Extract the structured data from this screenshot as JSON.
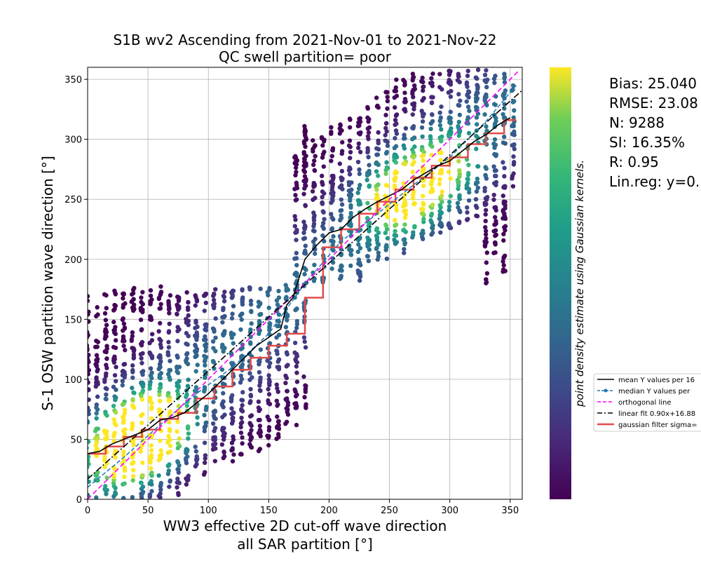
{
  "chart_data": {
    "type": "scatter",
    "title": [
      "S1B wv2 Ascending from 2021-Nov-01 to 2021-Nov-22",
      "QC swell partition= poor"
    ],
    "xlabel": [
      "WW3 effective 2D cut-off wave direction",
      "all SAR partition [°]"
    ],
    "ylabel": "S-1 OSW partition wave direction [°]",
    "xlim": [
      0,
      360
    ],
    "ylim": [
      0,
      360
    ],
    "xticks": [
      0,
      50,
      100,
      150,
      200,
      250,
      300,
      350
    ],
    "yticks": [
      0,
      50,
      100,
      150,
      200,
      250,
      300,
      350
    ],
    "grid": true,
    "colorbar_label": "point density estimate using Gaussian kernels.",
    "colormap": "viridis",
    "stats": [
      "Bias: 25.040",
      "RMSE: 23.08",
      "N: 9288",
      "SI: 16.35%",
      "R: 0.95",
      "Lin.reg: y=0."
    ],
    "legend_position": "right",
    "legend": [
      {
        "label": "mean Y values per 16",
        "color": "#000000",
        "style": "solid"
      },
      {
        "label": "median Y values per",
        "color": "#1f77b4",
        "style": "dashed-dot-marker"
      },
      {
        "label": "orthogonal line",
        "color": "#ff00ff",
        "style": "dashed"
      },
      {
        "label": "linear fit 0.90x+16.88",
        "color": "#000000",
        "style": "dashdot"
      },
      {
        "label": "gaussian filter sigma=",
        "color": "#e34a4a",
        "style": "solid-thick"
      }
    ],
    "scatter_columns": [
      {
        "x": 0,
        "ymin": 0,
        "ymax": 170
      },
      {
        "x": 7.5,
        "ymin": 0,
        "ymax": 165
      },
      {
        "x": 15,
        "ymin": 0,
        "ymax": 175
      },
      {
        "x": 22.5,
        "ymin": 0,
        "ymax": 175
      },
      {
        "x": 30,
        "ymin": 0,
        "ymax": 178
      },
      {
        "x": 37.5,
        "ymin": 0,
        "ymax": 178
      },
      {
        "x": 45,
        "ymin": 0,
        "ymax": 178
      },
      {
        "x": 52.5,
        "ymin": 0,
        "ymax": 178
      },
      {
        "x": 60,
        "ymin": 0,
        "ymax": 178
      },
      {
        "x": 67.5,
        "ymin": 10,
        "ymax": 175
      },
      {
        "x": 75,
        "ymin": 0,
        "ymax": 175
      },
      {
        "x": 82.5,
        "ymin": 10,
        "ymax": 175
      },
      {
        "x": 90,
        "ymin": 15,
        "ymax": 170
      },
      {
        "x": 97.5,
        "ymin": 20,
        "ymax": 172
      },
      {
        "x": 105,
        "ymin": 25,
        "ymax": 178
      },
      {
        "x": 112.5,
        "ymin": 30,
        "ymax": 178
      },
      {
        "x": 120,
        "ymin": 30,
        "ymax": 178
      },
      {
        "x": 127.5,
        "ymin": 35,
        "ymax": 178
      },
      {
        "x": 135,
        "ymin": 40,
        "ymax": 178
      },
      {
        "x": 142.5,
        "ymin": 40,
        "ymax": 178
      },
      {
        "x": 150,
        "ymin": 45,
        "ymax": 178
      },
      {
        "x": 157.5,
        "ymin": 50,
        "ymax": 180
      },
      {
        "x": 165,
        "ymin": 55,
        "ymax": 180
      },
      {
        "x": 172.5,
        "ymin": 60,
        "ymax": 290
      },
      {
        "x": 180,
        "ymin": 70,
        "ymax": 312
      },
      {
        "x": 187.5,
        "ymin": 180,
        "ymax": 300
      },
      {
        "x": 195,
        "ymin": 180,
        "ymax": 305
      },
      {
        "x": 202.5,
        "ymin": 182,
        "ymax": 310
      },
      {
        "x": 210,
        "ymin": 182,
        "ymax": 315
      },
      {
        "x": 217.5,
        "ymin": 182,
        "ymax": 320
      },
      {
        "x": 225,
        "ymin": 182,
        "ymax": 325
      },
      {
        "x": 232.5,
        "ymin": 190,
        "ymax": 330
      },
      {
        "x": 240,
        "ymin": 195,
        "ymax": 335
      },
      {
        "x": 247.5,
        "ymin": 200,
        "ymax": 345
      },
      {
        "x": 255,
        "ymin": 200,
        "ymax": 350
      },
      {
        "x": 262.5,
        "ymin": 205,
        "ymax": 350
      },
      {
        "x": 270,
        "ymin": 210,
        "ymax": 355
      },
      {
        "x": 277.5,
        "ymin": 215,
        "ymax": 358
      },
      {
        "x": 285,
        "ymin": 215,
        "ymax": 358
      },
      {
        "x": 292.5,
        "ymin": 220,
        "ymax": 358
      },
      {
        "x": 300,
        "ymin": 225,
        "ymax": 358
      },
      {
        "x": 307.5,
        "ymin": 230,
        "ymax": 358
      },
      {
        "x": 315,
        "ymin": 230,
        "ymax": 358
      },
      {
        "x": 322.5,
        "ymin": 235,
        "ymax": 358
      },
      {
        "x": 330,
        "ymin": 180,
        "ymax": 358
      },
      {
        "x": 337.5,
        "ymin": 200,
        "ymax": 358
      },
      {
        "x": 345,
        "ymin": 185,
        "ymax": 358
      },
      {
        "x": 352.5,
        "ymin": 260,
        "ymax": 345
      }
    ],
    "density_peaks": [
      {
        "x": 30,
        "y": 40,
        "weight": 1.0
      },
      {
        "x": 45,
        "y": 55,
        "weight": 0.85
      },
      {
        "x": 60,
        "y": 65,
        "weight": 0.6
      },
      {
        "x": 255,
        "y": 248,
        "weight": 0.7
      },
      {
        "x": 275,
        "y": 265,
        "weight": 0.6
      },
      {
        "x": 300,
        "y": 280,
        "weight": 0.45
      }
    ],
    "series": [
      {
        "name": "mean",
        "x": [
          0,
          10,
          20,
          30,
          40,
          50,
          60,
          70,
          80,
          90,
          100,
          110,
          120,
          130,
          140,
          150,
          160,
          165,
          170,
          180,
          190,
          200,
          210,
          220,
          230,
          240,
          250,
          260,
          270,
          280,
          290,
          300,
          310,
          320,
          330,
          340,
          350
        ],
        "y": [
          38,
          40,
          46,
          50,
          54,
          58,
          66,
          68,
          72,
          80,
          88,
          98,
          108,
          118,
          128,
          135,
          142,
          162,
          168,
          200,
          212,
          222,
          225,
          235,
          242,
          248,
          253,
          258,
          266,
          272,
          278,
          282,
          290,
          298,
          304,
          312,
          318
        ]
      },
      {
        "name": "gaussian",
        "x": [
          0,
          15,
          15,
          30,
          30,
          45,
          45,
          60,
          60,
          75,
          75,
          90,
          90,
          105,
          105,
          120,
          120,
          135,
          135,
          150,
          150,
          165,
          165,
          180,
          180,
          195,
          195,
          210,
          210,
          225,
          225,
          240,
          240,
          255,
          255,
          270,
          270,
          285,
          285,
          300,
          300,
          315,
          315,
          330,
          330,
          345,
          345,
          355
        ],
        "y": [
          38,
          38,
          44,
          44,
          52,
          52,
          58,
          58,
          67,
          67,
          72,
          72,
          84,
          84,
          94,
          94,
          108,
          108,
          118,
          118,
          128,
          128,
          138,
          138,
          168,
          168,
          210,
          210,
          225,
          225,
          238,
          238,
          248,
          248,
          258,
          258,
          268,
          268,
          278,
          278,
          285,
          285,
          296,
          296,
          305,
          305,
          316,
          316
        ]
      },
      {
        "name": "median",
        "x": [
          0,
          30,
          60,
          90,
          120,
          150,
          180,
          210,
          240,
          270,
          300,
          330,
          355
        ],
        "y": [
          10,
          35,
          62,
          88,
          110,
          138,
          180,
          215,
          238,
          262,
          285,
          315,
          345
        ]
      }
    ],
    "orthogonal": {
      "x": [
        0,
        358
      ],
      "y": [
        0,
        358
      ]
    },
    "linear_fit": {
      "slope": 0.9,
      "intercept": 16.88
    }
  }
}
